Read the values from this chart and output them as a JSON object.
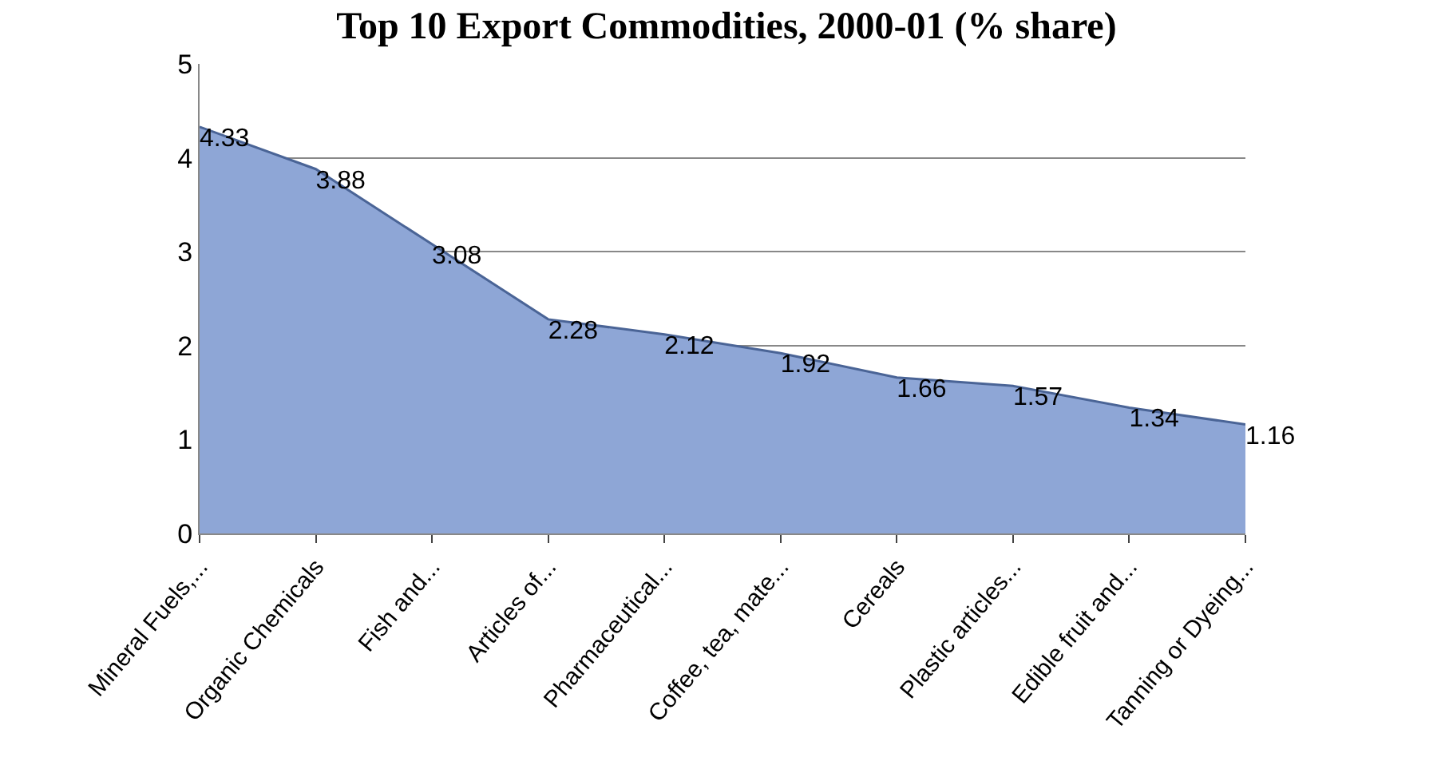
{
  "chart_data": {
    "type": "area",
    "title": "Top 10 Export Commodities, 2000-01 (% share)",
    "categories": [
      "Mineral Fuels,...",
      "Organic Chemicals",
      "Fish and...",
      "Articles of...",
      "Pharmaceutical...",
      "Coffee, tea, mate...",
      "Cereals",
      "Plastic articles...",
      "Edible fruit and...",
      "Tanning or Dyeing..."
    ],
    "series": [
      {
        "color": "#8ea6d6",
        "values": [
          4.33,
          3.88,
          3.08,
          2.28,
          2.12,
          1.92,
          1.66,
          1.57,
          1.34,
          1.16
        ]
      }
    ],
    "ylim": [
      0,
      5
    ],
    "yticks": [
      0,
      1,
      2,
      3,
      4,
      5
    ],
    "grid": "y",
    "data_labels": true
  }
}
